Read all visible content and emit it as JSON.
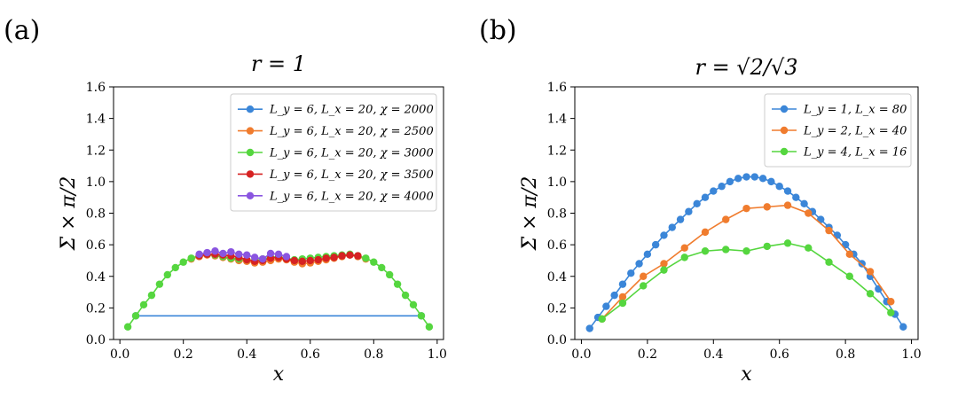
{
  "chart_data": [
    {
      "type": "line",
      "panel_label": "(a)",
      "title": "r = 1",
      "xlabel": "x",
      "ylabel": "Σ × π/2",
      "xlim": [
        -0.02,
        1.02
      ],
      "ylim": [
        0.0,
        1.6
      ],
      "xticks": [
        0.0,
        0.2,
        0.4,
        0.6,
        0.8,
        1.0
      ],
      "xtick_labels": [
        "0.0",
        "0.2",
        "0.4",
        "0.6",
        "0.8",
        "1.0"
      ],
      "yticks": [
        0.0,
        0.2,
        0.4,
        0.6,
        0.8,
        1.0,
        1.2,
        1.4,
        1.6
      ],
      "ytick_labels": [
        "0.0",
        "0.2",
        "0.4",
        "0.6",
        "0.8",
        "1.0",
        "1.2",
        "1.4",
        "1.6"
      ],
      "legend_position": "top-right",
      "series": [
        {
          "name": "L_y = 6, L_x = 20, χ = 2000",
          "color": "#3b86d8",
          "x": [
            0.05,
            0.95
          ],
          "y": [
            0.15,
            0.15
          ]
        },
        {
          "name": "L_y = 6, L_x = 20, χ = 2500",
          "color": "#f07c2e",
          "x": [
            0.225,
            0.25,
            0.275,
            0.3,
            0.325,
            0.35,
            0.375,
            0.4,
            0.425,
            0.45,
            0.475,
            0.5,
            0.525,
            0.55,
            0.575,
            0.6,
            0.625,
            0.65,
            0.675,
            0.7,
            0.725,
            0.75,
            0.775
          ],
          "y": [
            0.51,
            0.525,
            0.535,
            0.53,
            0.52,
            0.51,
            0.5,
            0.495,
            0.485,
            0.49,
            0.5,
            0.51,
            0.505,
            0.49,
            0.48,
            0.485,
            0.495,
            0.505,
            0.515,
            0.525,
            0.535,
            0.525,
            0.51
          ]
        },
        {
          "name": "L_y = 6, L_x = 20, χ = 3000",
          "color": "#55d63f",
          "x": [
            0.025,
            0.05,
            0.075,
            0.1,
            0.125,
            0.15,
            0.175,
            0.2,
            0.225,
            0.25,
            0.275,
            0.3,
            0.325,
            0.35,
            0.375,
            0.4,
            0.425,
            0.45,
            0.475,
            0.5,
            0.525,
            0.55,
            0.575,
            0.6,
            0.625,
            0.65,
            0.675,
            0.7,
            0.725,
            0.75,
            0.775,
            0.8,
            0.825,
            0.85,
            0.875,
            0.9,
            0.925,
            0.95,
            0.975
          ],
          "y": [
            0.08,
            0.15,
            0.22,
            0.28,
            0.35,
            0.41,
            0.455,
            0.49,
            0.515,
            0.53,
            0.54,
            0.535,
            0.525,
            0.515,
            0.51,
            0.505,
            0.5,
            0.51,
            0.52,
            0.525,
            0.515,
            0.505,
            0.51,
            0.515,
            0.52,
            0.525,
            0.53,
            0.535,
            0.54,
            0.53,
            0.515,
            0.49,
            0.455,
            0.41,
            0.35,
            0.28,
            0.22,
            0.15,
            0.08
          ]
        },
        {
          "name": "L_y = 6, L_x = 20, χ = 3500",
          "color": "#d62222",
          "x": [
            0.25,
            0.275,
            0.3,
            0.325,
            0.35,
            0.375,
            0.4,
            0.425,
            0.45,
            0.475,
            0.5,
            0.525,
            0.55,
            0.575,
            0.6,
            0.625,
            0.65,
            0.675,
            0.7,
            0.725,
            0.75
          ],
          "y": [
            0.53,
            0.54,
            0.54,
            0.535,
            0.53,
            0.52,
            0.505,
            0.495,
            0.5,
            0.515,
            0.52,
            0.51,
            0.5,
            0.495,
            0.5,
            0.505,
            0.515,
            0.52,
            0.53,
            0.535,
            0.53
          ]
        },
        {
          "name": "L_y = 6, L_x = 20, χ = 4000",
          "color": "#8a55e0",
          "x": [
            0.25,
            0.275,
            0.3,
            0.325,
            0.35,
            0.375,
            0.4,
            0.425,
            0.45,
            0.475,
            0.5,
            0.525
          ],
          "y": [
            0.54,
            0.55,
            0.56,
            0.545,
            0.555,
            0.54,
            0.535,
            0.52,
            0.51,
            0.545,
            0.54,
            0.525
          ]
        }
      ]
    },
    {
      "type": "line",
      "panel_label": "(b)",
      "title": "r = √2/√3",
      "xlabel": "x",
      "ylabel": "Σ × π/2",
      "xlim": [
        -0.02,
        1.02
      ],
      "ylim": [
        0.0,
        1.6
      ],
      "xticks": [
        0.0,
        0.2,
        0.4,
        0.6,
        0.8,
        1.0
      ],
      "xtick_labels": [
        "0.0",
        "0.2",
        "0.4",
        "0.6",
        "0.8",
        "1.0"
      ],
      "yticks": [
        0.0,
        0.2,
        0.4,
        0.6,
        0.8,
        1.0,
        1.2,
        1.4,
        1.6
      ],
      "ytick_labels": [
        "0.0",
        "0.2",
        "0.4",
        "0.6",
        "0.8",
        "1.0",
        "1.2",
        "1.4",
        "1.6"
      ],
      "legend_position": "top-right",
      "series": [
        {
          "name": "L_y = 1, L_x = 80",
          "color": "#3b86d8",
          "x": [
            0.025,
            0.05,
            0.075,
            0.1,
            0.125,
            0.15,
            0.175,
            0.2,
            0.225,
            0.25,
            0.275,
            0.3,
            0.325,
            0.35,
            0.375,
            0.4,
            0.425,
            0.45,
            0.475,
            0.5,
            0.525,
            0.55,
            0.575,
            0.6,
            0.625,
            0.65,
            0.675,
            0.7,
            0.725,
            0.75,
            0.775,
            0.8,
            0.825,
            0.85,
            0.875,
            0.9,
            0.925,
            0.95,
            0.975
          ],
          "y": [
            0.07,
            0.14,
            0.21,
            0.28,
            0.35,
            0.42,
            0.48,
            0.54,
            0.6,
            0.66,
            0.71,
            0.76,
            0.81,
            0.86,
            0.9,
            0.94,
            0.97,
            1.0,
            1.02,
            1.03,
            1.03,
            1.02,
            1.0,
            0.97,
            0.94,
            0.9,
            0.86,
            0.81,
            0.76,
            0.71,
            0.66,
            0.6,
            0.54,
            0.48,
            0.4,
            0.32,
            0.24,
            0.16,
            0.08
          ]
        },
        {
          "name": "L_y = 2, L_x = 40",
          "color": "#f07c2e",
          "x": [
            0.0625,
            0.125,
            0.1875,
            0.25,
            0.3125,
            0.375,
            0.4375,
            0.5,
            0.5625,
            0.625,
            0.6875,
            0.75,
            0.8125,
            0.875,
            0.9375
          ],
          "y": [
            0.13,
            0.27,
            0.4,
            0.48,
            0.58,
            0.68,
            0.76,
            0.83,
            0.84,
            0.85,
            0.8,
            0.69,
            0.54,
            0.43,
            0.24
          ]
        },
        {
          "name": "L_y = 4, L_x = 16",
          "color": "#55d63f",
          "x": [
            0.0625,
            0.125,
            0.1875,
            0.25,
            0.3125,
            0.375,
            0.4375,
            0.5,
            0.5625,
            0.625,
            0.6875,
            0.75,
            0.8125,
            0.875,
            0.9375
          ],
          "y": [
            0.13,
            0.23,
            0.34,
            0.44,
            0.52,
            0.56,
            0.57,
            0.56,
            0.59,
            0.61,
            0.58,
            0.49,
            0.4,
            0.29,
            0.17
          ]
        }
      ]
    }
  ]
}
